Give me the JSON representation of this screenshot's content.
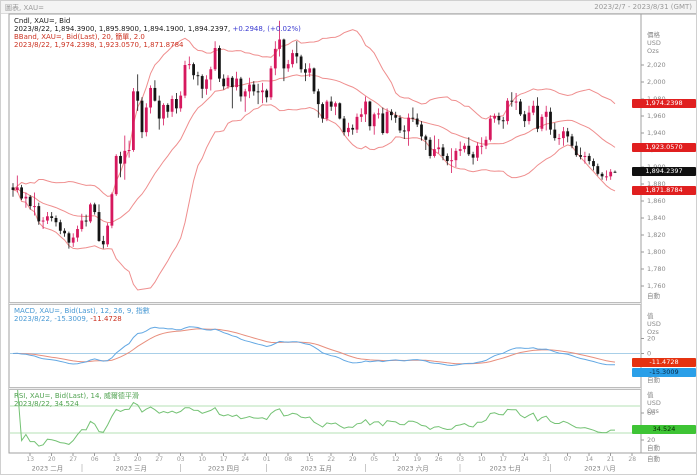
{
  "topbar": {
    "title": "圖表, XAU=",
    "range": "2023/2/7 - 2023/8/31 (GMT)"
  },
  "main_pane": {
    "legend1": "Cndl, XAU=, Bid",
    "legend2_black": "2023/8/22, 1,894.3900, 1,895.8900, 1,894.1900, 1,894.2397,",
    "legend2_blue": "+0.2948, (+0.02%)",
    "legend3": "BBand, XAU=, Bid(Last), 20, 簡單, 2.0",
    "legend4": "2023/8/22, 1,974.2398, 1,923.0570, 1,871.8784",
    "axis_header": [
      "價格",
      "USD",
      "Ozs"
    ],
    "auto_label": "自動",
    "ticks": [
      {
        "label": "2,020",
        "v": 2020
      },
      {
        "label": "2,000",
        "v": 2000
      },
      {
        "label": "1,980",
        "v": 1980
      },
      {
        "label": "1,960",
        "v": 1960
      },
      {
        "label": "1,940",
        "v": 1940
      },
      {
        "label": "1,920",
        "v": 1920
      },
      {
        "label": "1,900",
        "v": 1900
      },
      {
        "label": "1,880",
        "v": 1880
      },
      {
        "label": "1,860",
        "v": 1860
      },
      {
        "label": "1,840",
        "v": 1840
      },
      {
        "label": "1,820",
        "v": 1820
      },
      {
        "label": "1,800",
        "v": 1800
      },
      {
        "label": "1,780",
        "v": 1780
      },
      {
        "label": "1,760",
        "v": 1760
      }
    ],
    "badges": [
      {
        "label": "1,974.2398",
        "v": 1974.2398,
        "bg": "#e01f1f",
        "fg": "#ffffff"
      },
      {
        "label": "1,923.0570",
        "v": 1923.057,
        "bg": "#e01f1f",
        "fg": "#ffffff"
      },
      {
        "label": "1,894.2397",
        "v": 1894.2397,
        "bg": "#101010",
        "fg": "#ffffff"
      },
      {
        "label": "1,871.8784",
        "v": 1871.8784,
        "bg": "#e01f1f",
        "fg": "#ffffff"
      }
    ]
  },
  "macd_pane": {
    "legend1": "MACD, XAU=, Bid(Last), 12, 26, 9, 指數",
    "legend2_blue": "2023/8/22, -15.3009,",
    "legend2_red": "-11.4728",
    "axis_header": [
      "值",
      "USD",
      "Ozs"
    ],
    "auto_label": "自動",
    "ticks": [
      {
        "label": "20",
        "v": 20
      },
      {
        "label": "0",
        "v": 0
      }
    ],
    "badges": [
      {
        "label": "-11.4728",
        "v": -11.4728,
        "bg": "#e53210",
        "fg": "#ffffff"
      },
      {
        "label": "-15.3009",
        "v": -15.3009,
        "bg": "#2a9fe8",
        "fg": "#072a46"
      }
    ]
  },
  "rsi_pane": {
    "legend1": "RSI, XAU=, Bid(Last), 14, 威爾德平滑",
    "legend2": "2023/8/22, 34.524",
    "axis_header": [
      "值",
      "USD",
      "Ozs"
    ],
    "auto_label": "自動",
    "ticks": [
      {
        "label": "60",
        "v": 60
      },
      {
        "label": "20",
        "v": 20
      }
    ],
    "badges": [
      {
        "label": "34.524",
        "v": 34.524,
        "bg": "#3ec435",
        "fg": "#042800"
      }
    ]
  },
  "x_axis": {
    "auto_label": "自動",
    "weekly_ticks": [
      {
        "label": "13",
        "idx": 4
      },
      {
        "label": "20",
        "idx": 9
      },
      {
        "label": "27",
        "idx": 14
      },
      {
        "label": "06",
        "idx": 19
      },
      {
        "label": "13",
        "idx": 24
      },
      {
        "label": "20",
        "idx": 29
      },
      {
        "label": "27",
        "idx": 34
      },
      {
        "label": "03",
        "idx": 39
      },
      {
        "label": "10",
        "idx": 44
      },
      {
        "label": "17",
        "idx": 49
      },
      {
        "label": "24",
        "idx": 54
      },
      {
        "label": "01",
        "idx": 59
      },
      {
        "label": "08",
        "idx": 64
      },
      {
        "label": "15",
        "idx": 69
      },
      {
        "label": "22",
        "idx": 74
      },
      {
        "label": "29",
        "idx": 79
      },
      {
        "label": "05",
        "idx": 84
      },
      {
        "label": "12",
        "idx": 89
      },
      {
        "label": "19",
        "idx": 94
      },
      {
        "label": "26",
        "idx": 99
      },
      {
        "label": "03",
        "idx": 104
      },
      {
        "label": "10",
        "idx": 109
      },
      {
        "label": "17",
        "idx": 114
      },
      {
        "label": "24",
        "idx": 119
      },
      {
        "label": "31",
        "idx": 124
      },
      {
        "label": "07",
        "idx": 129
      },
      {
        "label": "14",
        "idx": 134
      },
      {
        "label": "21",
        "idx": 139
      },
      {
        "label": "28",
        "idx": 144
      }
    ],
    "months": [
      {
        "label": "2023 二月",
        "s": 0,
        "e": 16
      },
      {
        "label": "2023 三月",
        "s": 16,
        "e": 39
      },
      {
        "label": "2023 四月",
        "s": 39,
        "e": 59
      },
      {
        "label": "2023 五月",
        "s": 59,
        "e": 82
      },
      {
        "label": "2023 六月",
        "s": 82,
        "e": 104
      },
      {
        "label": "2023 七月",
        "s": 104,
        "e": 125
      },
      {
        "label": "2023 八月",
        "s": 125,
        "e": 148
      }
    ]
  },
  "colors": {
    "up_candle": "#d6185e",
    "down_candle": "#141414",
    "bollinger": "#ef8e8e",
    "macd_line": "#63a8e3",
    "macd_signal": "#e88f7d",
    "macd_zero": "#a8cfe8",
    "rsi_line": "#74c274",
    "rsi_levels": "#b5e0b5",
    "frame": "#a0a0a0",
    "splitter": "#bdbdbd",
    "axis_text": "#8a8a8a",
    "tick": "#999999"
  },
  "chart_data": {
    "type": "candlestick",
    "symbol": "XAU=",
    "field": "Bid",
    "interval": "daily",
    "visible_range": "2023/2/7 - 2023/8/31 (GMT)",
    "start_date": "2023-02-07",
    "end_date": "2023-08-22",
    "last_bar": {
      "date": "2023/8/22",
      "open": 1894.39,
      "high": 1895.89,
      "low": 1894.19,
      "close": 1894.2397,
      "change": 0.2948,
      "change_pct": "+0.02%"
    },
    "overlays": {
      "bollinger": {
        "period": 20,
        "ma_type": "簡單",
        "mult": 2.0,
        "last_upper": 1974.2398,
        "last_middle": 1923.057,
        "last_lower": 1871.8784
      }
    },
    "studies": {
      "macd": {
        "fast": 12,
        "slow": 26,
        "signal_period": 9,
        "method": "指數",
        "last_macd": -15.3009,
        "last_signal": -11.4728
      },
      "rsi": {
        "period": 14,
        "method": "威爾德平滑",
        "last": 34.524,
        "levels": [
          70,
          30
        ]
      }
    },
    "y_axis_range": [
      1760,
      2020
    ],
    "first_open": 1876,
    "hlc": [
      [
        1881,
        1865,
        1873
      ],
      [
        1890,
        1870,
        1876
      ],
      [
        1879,
        1861,
        1863
      ],
      [
        1870,
        1852,
        1865
      ],
      [
        1867,
        1850,
        1854
      ],
      [
        1870,
        1843,
        1854
      ],
      [
        1858,
        1832,
        1836
      ],
      [
        1841,
        1827,
        1837
      ],
      [
        1847,
        1833,
        1842
      ],
      [
        1847,
        1836,
        1840
      ],
      [
        1843,
        1830,
        1835
      ],
      [
        1838,
        1821,
        1825
      ],
      [
        1828,
        1818,
        1822
      ],
      [
        1824,
        1804,
        1811
      ],
      [
        1822,
        1806,
        1817
      ],
      [
        1831,
        1812,
        1827
      ],
      [
        1845,
        1824,
        1837
      ],
      [
        1844,
        1830,
        1836
      ],
      [
        1858,
        1834,
        1856
      ],
      [
        1858,
        1844,
        1847
      ],
      [
        1856,
        1812,
        1813
      ],
      [
        1819,
        1804,
        1809
      ],
      [
        1834,
        1806,
        1831
      ],
      [
        1870,
        1828,
        1868
      ],
      [
        1915,
        1866,
        1913
      ],
      [
        1918,
        1888,
        1904
      ],
      [
        1937,
        1885,
        1919
      ],
      [
        1931,
        1911,
        1920
      ],
      [
        1993,
        1918,
        1989
      ],
      [
        2009,
        1966,
        1978
      ],
      [
        1982,
        1934,
        1941
      ],
      [
        1975,
        1936,
        1970
      ],
      [
        1996,
        1963,
        1993
      ],
      [
        2002,
        1977,
        1978
      ],
      [
        1984,
        1944,
        1957
      ],
      [
        1975,
        1949,
        1973
      ],
      [
        1975,
        1958,
        1965
      ],
      [
        1984,
        1959,
        1980
      ],
      [
        1987,
        1963,
        1969
      ],
      [
        1989,
        1965,
        1984
      ],
      [
        2025,
        1981,
        2020
      ],
      [
        2030,
        2015,
        2021
      ],
      [
        2023,
        2003,
        2008
      ],
      [
        2012,
        1996,
        2007
      ],
      [
        2009,
        1981,
        1992
      ],
      [
        2008,
        1985,
        2003
      ],
      [
        2018,
        1990,
        2015
      ],
      [
        2048,
        2013,
        2040
      ],
      [
        2043,
        2000,
        2004
      ],
      [
        2009,
        1991,
        1995
      ],
      [
        2008,
        1992,
        2005
      ],
      [
        2007,
        1969,
        1994
      ],
      [
        2012,
        1990,
        2004
      ],
      [
        2006,
        1977,
        1983
      ],
      [
        1992,
        1965,
        1989
      ],
      [
        2005,
        1981,
        1997
      ],
      [
        2001,
        1984,
        1989
      ],
      [
        1998,
        1974,
        1988
      ],
      [
        1999,
        1975,
        1990
      ],
      [
        1992,
        1976,
        1982
      ],
      [
        2019,
        1979,
        2016
      ],
      [
        2048,
        2008,
        2039
      ],
      [
        2072,
        2030,
        2050
      ],
      [
        2051,
        2001,
        2016
      ],
      [
        2026,
        2012,
        2021
      ],
      [
        2038,
        2017,
        2034
      ],
      [
        2048,
        2022,
        2030
      ],
      [
        2032,
        2011,
        2015
      ],
      [
        2022,
        2001,
        2011
      ],
      [
        2022,
        2006,
        2016
      ],
      [
        2017,
        1986,
        1989
      ],
      [
        1992,
        1958,
        1974
      ],
      [
        1976,
        1952,
        1957
      ],
      [
        1979,
        1954,
        1977
      ],
      [
        1983,
        1966,
        1971
      ],
      [
        1977,
        1961,
        1975
      ],
      [
        1976,
        1956,
        1957
      ],
      [
        1960,
        1937,
        1941
      ],
      [
        1952,
        1936,
        1946
      ],
      [
        1950,
        1938,
        1944
      ],
      [
        1963,
        1940,
        1959
      ],
      [
        1969,
        1953,
        1962
      ],
      [
        1983,
        1953,
        1977
      ],
      [
        1978,
        1943,
        1948
      ],
      [
        1964,
        1938,
        1962
      ],
      [
        1969,
        1957,
        1963
      ],
      [
        1970,
        1938,
        1940
      ],
      [
        1969,
        1939,
        1965
      ],
      [
        1968,
        1955,
        1961
      ],
      [
        1965,
        1952,
        1958
      ],
      [
        1961,
        1940,
        1943
      ],
      [
        1949,
        1933,
        1942
      ],
      [
        1963,
        1925,
        1958
      ],
      [
        1970,
        1953,
        1957
      ],
      [
        1963,
        1947,
        1950
      ],
      [
        1954,
        1931,
        1936
      ],
      [
        1938,
        1920,
        1932
      ],
      [
        1935,
        1910,
        1913
      ],
      [
        1937,
        1911,
        1921
      ],
      [
        1933,
        1916,
        1923
      ],
      [
        1927,
        1908,
        1913
      ],
      [
        1916,
        1902,
        1907
      ],
      [
        1922,
        1893,
        1908
      ],
      [
        1922,
        1900,
        1919
      ],
      [
        1930,
        1913,
        1921
      ],
      [
        1928,
        1917,
        1925
      ],
      [
        1935,
        1913,
        1915
      ],
      [
        1918,
        1903,
        1911
      ],
      [
        1929,
        1907,
        1925
      ],
      [
        1935,
        1915,
        1925
      ],
      [
        1936,
        1921,
        1932
      ],
      [
        1961,
        1930,
        1957
      ],
      [
        1963,
        1952,
        1960
      ],
      [
        1964,
        1950,
        1955
      ],
      [
        1959,
        1945,
        1954
      ],
      [
        1981,
        1950,
        1978
      ],
      [
        1988,
        1971,
        1977
      ],
      [
        1987,
        1967,
        1977
      ],
      [
        1980,
        1960,
        1962
      ],
      [
        1966,
        1947,
        1954
      ],
      [
        1972,
        1950,
        1964
      ],
      [
        1978,
        1961,
        1972
      ],
      [
        1982,
        1941,
        1945
      ],
      [
        1962,
        1942,
        1959
      ],
      [
        1972,
        1943,
        1965
      ],
      [
        1970,
        1938,
        1944
      ],
      [
        1952,
        1931,
        1934
      ],
      [
        1939,
        1926,
        1934
      ],
      [
        1947,
        1925,
        1942
      ],
      [
        1946,
        1929,
        1936
      ],
      [
        1939,
        1922,
        1925
      ],
      [
        1930,
        1912,
        1914
      ],
      [
        1923,
        1909,
        1912
      ],
      [
        1918,
        1904,
        1913
      ],
      [
        1916,
        1903,
        1907
      ],
      [
        1910,
        1896,
        1901
      ],
      [
        1904,
        1890,
        1892
      ],
      [
        1894,
        1885,
        1889
      ],
      [
        1896,
        1884,
        1889
      ],
      [
        1897.5,
        1884.9,
        1894.39
      ],
      [
        1895.89,
        1894.19,
        1894.2397
      ]
    ]
  }
}
